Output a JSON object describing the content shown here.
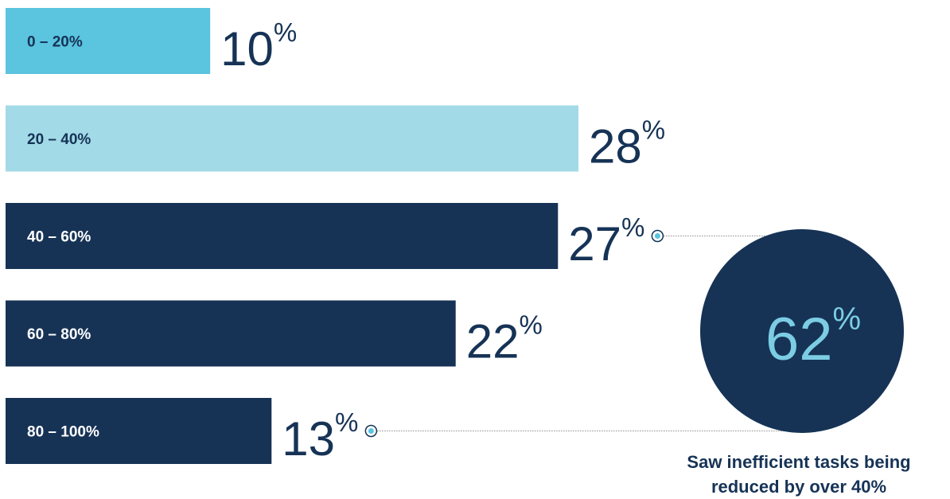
{
  "chart_data": {
    "type": "bar",
    "orientation": "horizontal",
    "categories": [
      "0 – 20%",
      "20 – 40%",
      "40 – 60%",
      "60 – 80%",
      "80 – 100%"
    ],
    "values": [
      10,
      28,
      27,
      22,
      13
    ],
    "value_suffix": "%",
    "bar_colors": [
      "#5bc4df",
      "#a2dae7",
      "#163356",
      "#163356",
      "#163356"
    ],
    "label_colors": [
      "#163356",
      "#163356",
      "#ffffff",
      "#ffffff",
      "#ffffff"
    ],
    "value_color": "#163356",
    "xlim": [
      0,
      28
    ],
    "callout": {
      "value": "62",
      "suffix": "%",
      "text_line1": "Saw inefficient tasks being",
      "text_line2": "reduced by over 40%",
      "circle_color": "#163356",
      "value_color": "#7ccde3",
      "text_color": "#163356",
      "links_from_categories": [
        "40 – 60%",
        "80 – 100%"
      ]
    }
  }
}
